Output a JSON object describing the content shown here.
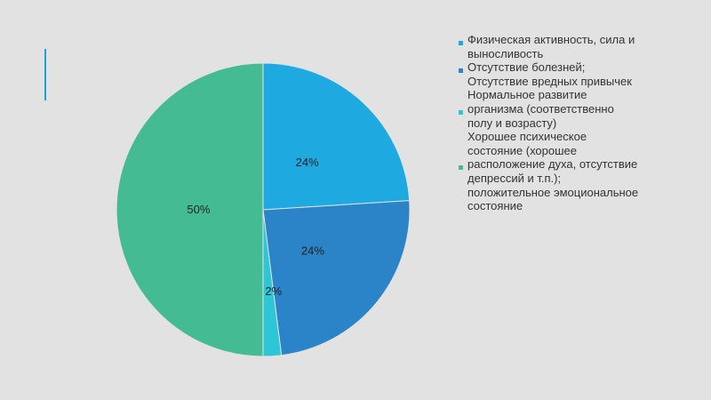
{
  "chart_data": {
    "type": "pie",
    "title": "",
    "slices": [
      {
        "label": "Физическая активность, сила и выносливость",
        "value": 24,
        "display": "24%",
        "color": "#1fa9e1"
      },
      {
        "label": "Отсутствие болезней; Отсутствие вредных привычек",
        "value": 24,
        "display": "24%",
        "color": "#2a84c7"
      },
      {
        "label": "Нормальное развитие организма (соответственно полу и возрасту)",
        "value": 2,
        "display": "2%",
        "color": "#2ec5d6"
      },
      {
        "label": "Хорошее психическое состояние (хорошее расположение духа, отсутствие депрессий и т.п.); положительное эмоциональное состояние",
        "value": 50,
        "display": "50%",
        "color": "#45bb94"
      }
    ],
    "start_angle_deg": 0,
    "direction": "clockwise",
    "legend_position": "right"
  },
  "legend_lines": [
    [
      "Физическая активность, сила и",
      "выносливость"
    ],
    [
      "Отсутствие болезней;",
      "Отсутствие вредных привычек"
    ],
    [
      "Нормальное развитие",
      "организма (соответственно",
      "полу и возрасту)"
    ],
    [
      "Хорошее психическое",
      "состояние (хорошее",
      "расположение духа, отсутствие",
      "депрессий и т.п.);",
      "положительное эмоциональное",
      "состояние"
    ]
  ]
}
